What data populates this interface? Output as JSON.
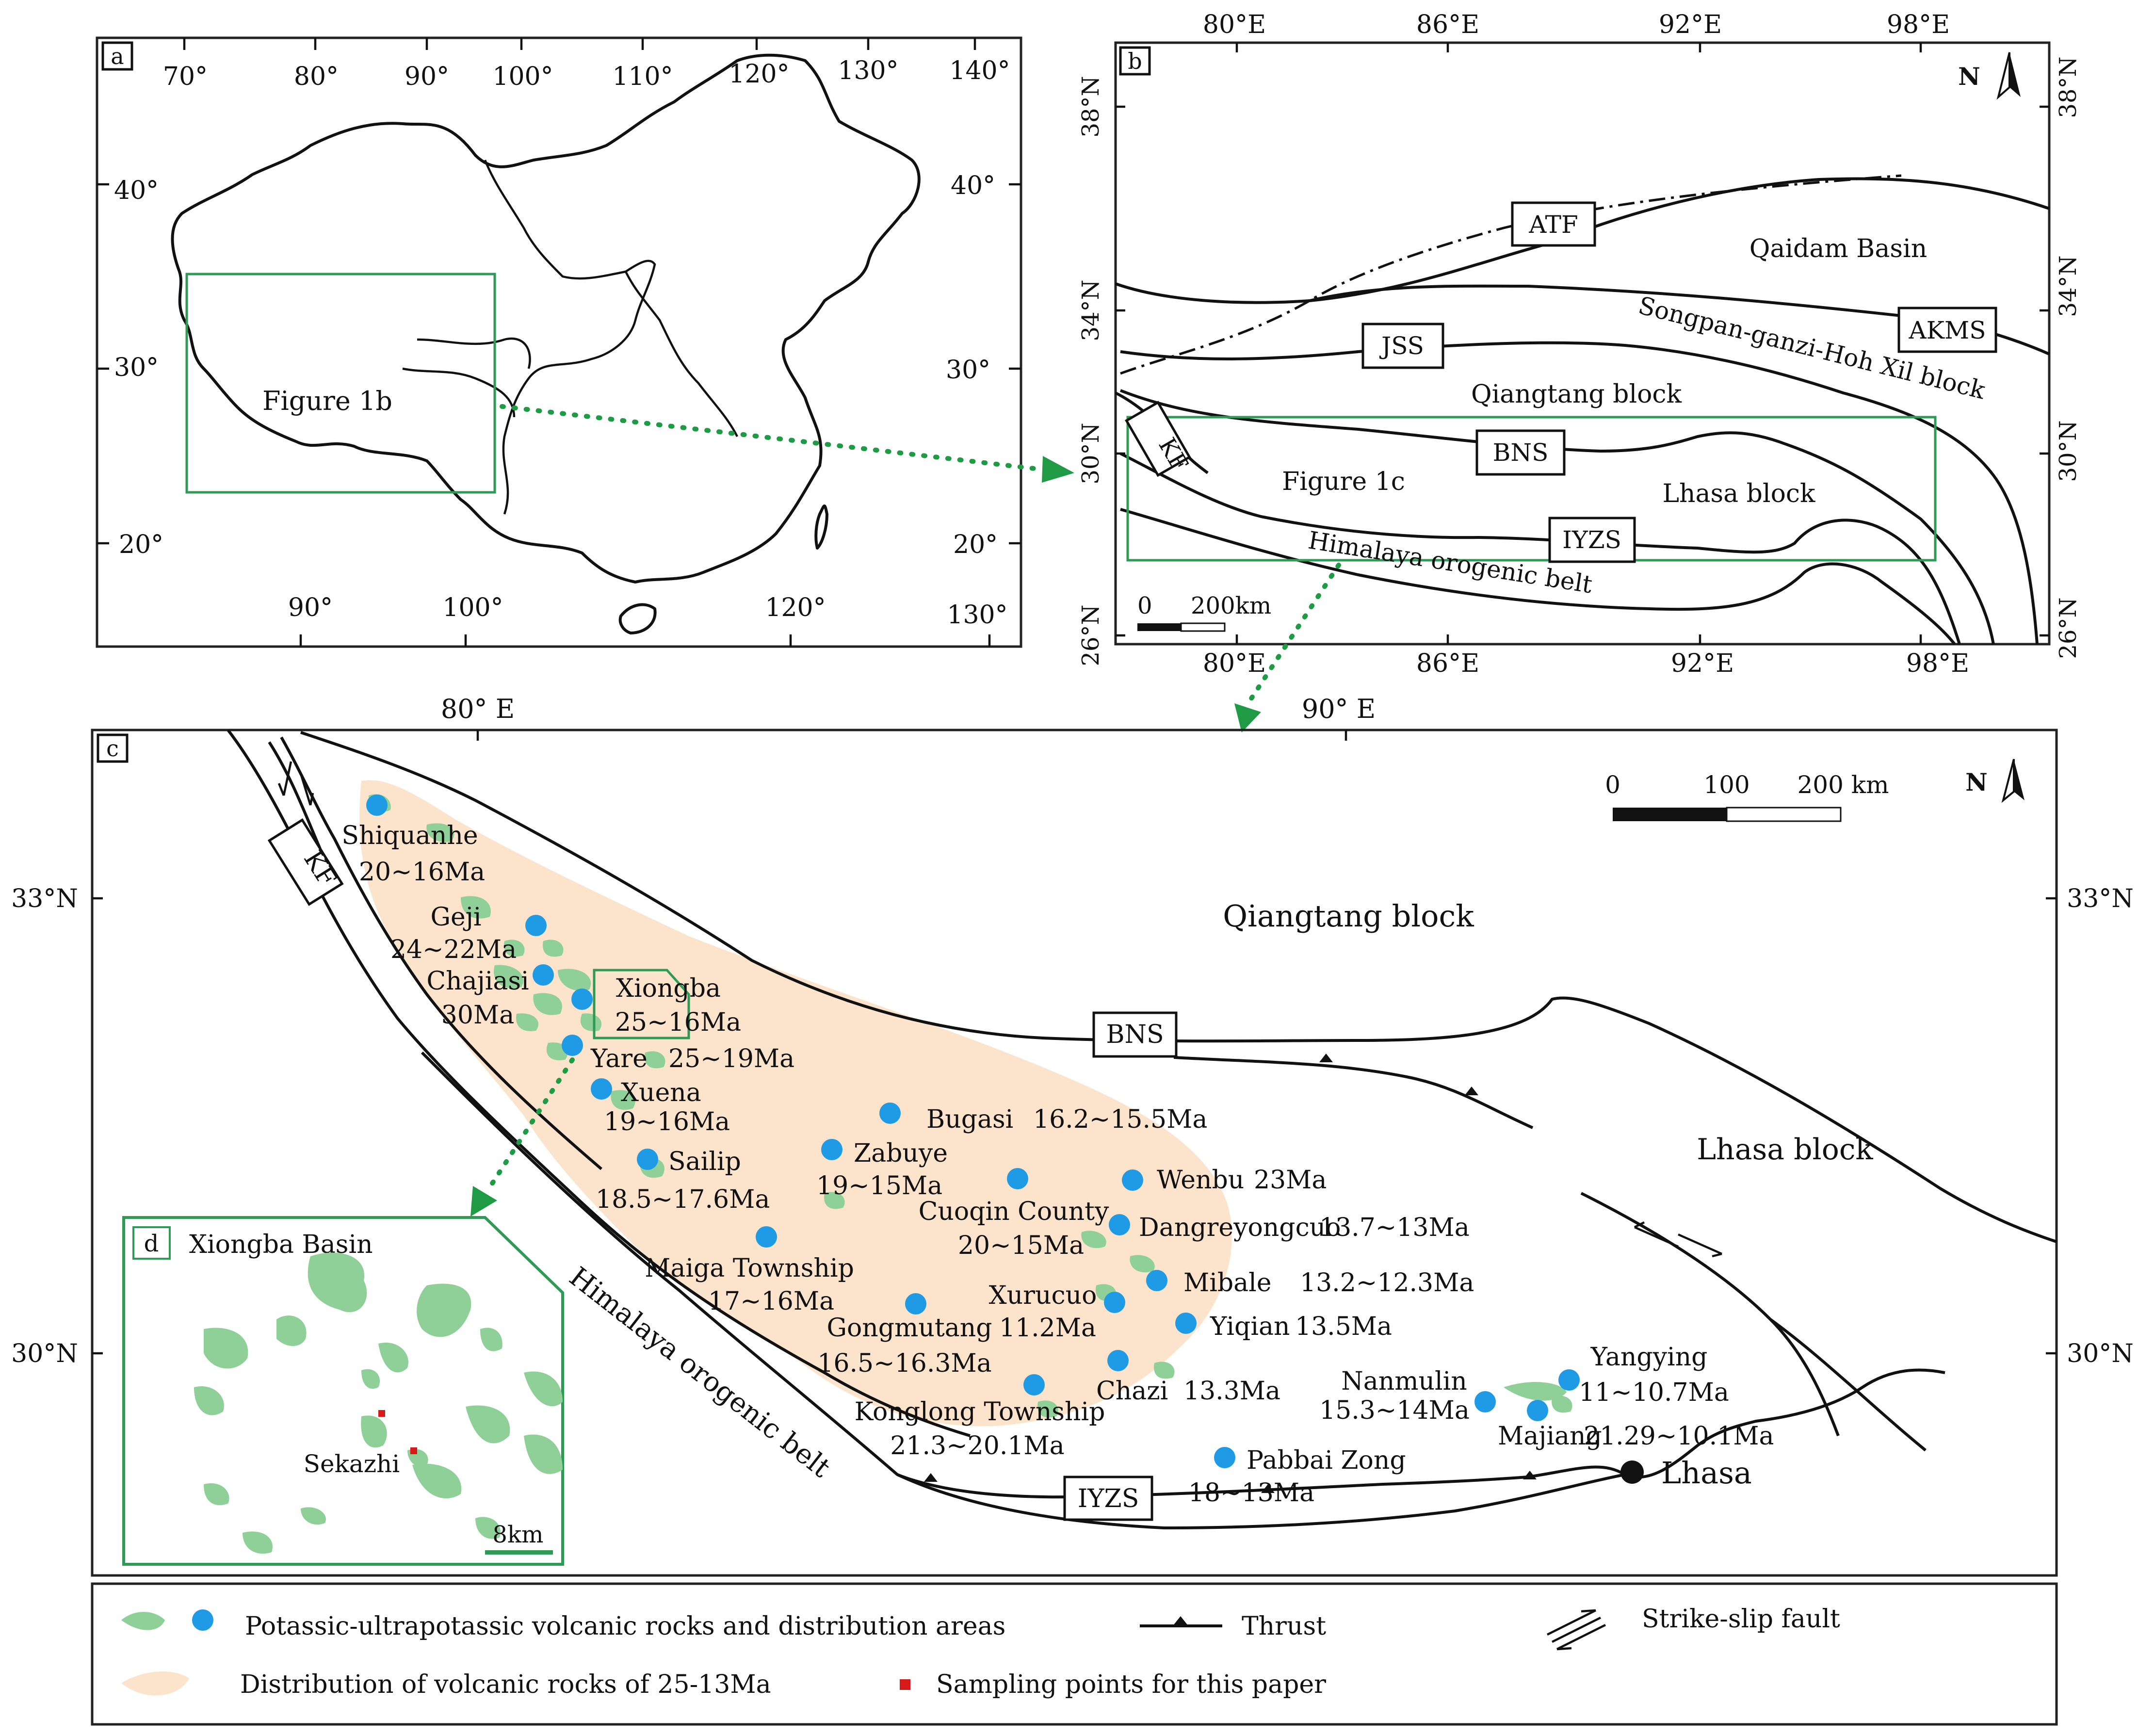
{
  "panel_a": {
    "tag": "a",
    "top_lon": [
      "70°",
      "80°",
      "90°",
      "100°",
      "110°",
      "120°",
      "130°",
      "140°"
    ],
    "bottom_lon": [
      "90°",
      "100°",
      "120°",
      "130°"
    ],
    "left_lat": [
      "40°",
      "30°",
      "20°"
    ],
    "right_lat": [
      "40°",
      "30°",
      "20°"
    ],
    "inset_label": "Figure 1b"
  },
  "panel_b": {
    "tag": "b",
    "top_lon": [
      "80°E",
      "86°E",
      "92°E",
      "98°E"
    ],
    "bottom_lon": [
      "80°E",
      "86°E",
      "92°E",
      "98°E"
    ],
    "left_lat": [
      "38°N",
      "34°N",
      "30°N",
      "26°N"
    ],
    "right_lat": [
      "38°N",
      "34°N",
      "30°N",
      "26°N"
    ],
    "north": "N",
    "labels": {
      "atf": "ATF",
      "qaidam": "Qaidam Basin",
      "akms": "AKMS",
      "jss": "JSS",
      "songpan": "Songpan-ganzi-Hoh Xil block",
      "qiangtang": "Qiangtang block",
      "kf": "KF",
      "bns": "BNS",
      "figure1c": "Figure 1c",
      "lhasa": "Lhasa block",
      "iyzs": "IYZS",
      "himalaya": "Himalaya orogenic belt"
    },
    "scale": {
      "zero": "0",
      "end": "200km"
    }
  },
  "panel_c": {
    "tag": "c",
    "top_lon": [
      "80° E",
      "90° E"
    ],
    "left_lat": [
      "33°N",
      "30°N"
    ],
    "right_lat": [
      "33°N",
      "30°N"
    ],
    "north": "N",
    "scale": {
      "zero": "0",
      "mid": "100",
      "end": "200 km"
    },
    "labels": {
      "kf": "KF",
      "qiangtang": "Qiangtang block",
      "bns": "BNS",
      "lhasa_block": "Lhasa block",
      "himalaya": "Himalaya orogenic belt",
      "iyzs": "IYZS",
      "lhasa_city": "Lhasa"
    },
    "sites": [
      {
        "name": "Shiquanhe",
        "age": "20~16Ma"
      },
      {
        "name": "Geji",
        "age": "24~22Ma"
      },
      {
        "name": "Chajiasi",
        "age": "30Ma"
      },
      {
        "name": "Xiongba",
        "age": "25~16Ma"
      },
      {
        "name": "Yare",
        "age": "25~19Ma"
      },
      {
        "name": "Xuena",
        "age": "19~16Ma"
      },
      {
        "name": "Sailip",
        "age": "18.5~17.6Ma"
      },
      {
        "name": "Bugasi",
        "age": "16.2~15.5Ma"
      },
      {
        "name": "Zabuye",
        "age": "19~15Ma"
      },
      {
        "name": "Wenbu",
        "age": "23Ma"
      },
      {
        "name": "Cuoqin County",
        "age": "20~15Ma"
      },
      {
        "name": "Dangreyongcuo",
        "age": "13.7~13Ma"
      },
      {
        "name": "Maiga Township",
        "age": "17~16Ma"
      },
      {
        "name": "Mibale",
        "age": "13.2~12.3Ma"
      },
      {
        "name": "Xurucuo",
        "age": "11.2Ma"
      },
      {
        "name": "Yiqian",
        "age": "13.5Ma"
      },
      {
        "name": "Gongmutang",
        "age": "16.5~16.3Ma"
      },
      {
        "name": "Chazi",
        "age": "13.3Ma"
      },
      {
        "name": "Konglong Township",
        "age": "21.3~20.1Ma"
      },
      {
        "name": "Nanmulin",
        "age": "15.3~14Ma"
      },
      {
        "name": "Yangying",
        "age": "11~10.7Ma"
      },
      {
        "name": "Majiang",
        "age": "21.29~10.1Ma"
      },
      {
        "name": "Pabbai Zong",
        "age": "18~13Ma"
      }
    ]
  },
  "panel_d": {
    "tag": "d",
    "title": "Xiongba Basin",
    "sample_label": "Sekazhi",
    "scale": "8km"
  },
  "legend": {
    "volcanic": "Potassic-ultrapotassic volcanic rocks and distribution areas",
    "distribution": "Distribution of volcanic rocks of  25-13Ma",
    "thrust": "Thrust",
    "strike_slip": "Strike-slip  fault",
    "sampling": "Sampling points for this paper"
  },
  "colors": {
    "volcanic": "#8fcf98",
    "site": "#1f9be6",
    "zone": "#fbe3cc",
    "box": "#2f9a55",
    "sample": "#d71919"
  }
}
